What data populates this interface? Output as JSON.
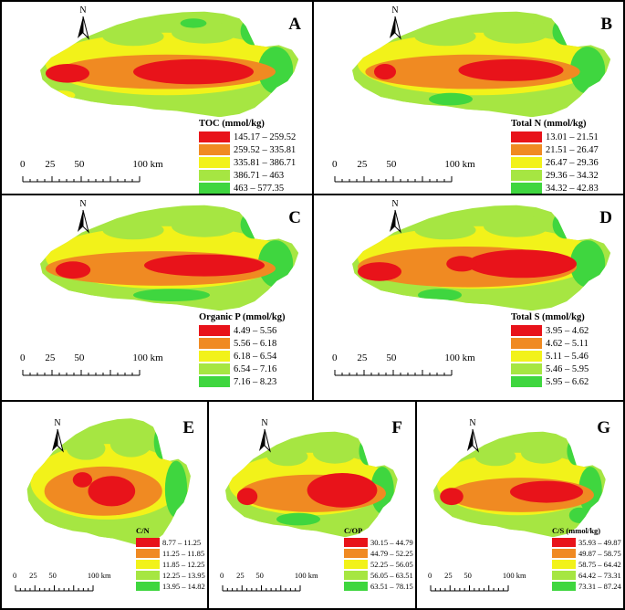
{
  "colors": {
    "red": "#e8131a",
    "orange": "#f08a22",
    "yellow": "#f2f21a",
    "lightgreen": "#a6e642",
    "green": "#3fd63f"
  },
  "panels": [
    {
      "id": "A",
      "legend_title": "TOC (mmol/kg)",
      "classes": [
        "145.17 – 259.52",
        "259.52 – 335.81",
        "335.81 – 386.71",
        "386.71 – 463",
        "463 – 577.35"
      ]
    },
    {
      "id": "B",
      "legend_title": "Total N (mmol/kg)",
      "classes": [
        "13.01 – 21.51",
        "21.51 – 26.47",
        "26.47 – 29.36",
        "29.36 – 34.32",
        "34.32 – 42.83"
      ]
    },
    {
      "id": "C",
      "legend_title": "Organic P (mmol/kg)",
      "classes": [
        "4.49 – 5.56",
        "5.56 – 6.18",
        "6.18 – 6.54",
        "6.54 – 7.16",
        "7.16 – 8.23"
      ]
    },
    {
      "id": "D",
      "legend_title": "Total S (mmol/kg)",
      "classes": [
        "3.95 – 4.62",
        "4.62 – 5.11",
        "5.11 – 5.46",
        "5.46 – 5.95",
        "5.95 – 6.62"
      ]
    },
    {
      "id": "E",
      "legend_title": "C/N",
      "classes": [
        "8.77 – 11.25",
        "11.25 – 11.85",
        "11.85 – 12.25",
        "12.25 – 13.95",
        "13.95 – 14.82"
      ]
    },
    {
      "id": "F",
      "legend_title": "C/OP",
      "classes": [
        "30.15 – 44.79",
        "44.79 – 52.25",
        "52.25 – 56.05",
        "56.05 – 63.51",
        "63.51 – 78.15"
      ]
    },
    {
      "id": "G",
      "legend_title": "C/S (mmol/kg)",
      "classes": [
        "35.93 – 49.87",
        "49.87 – 58.75",
        "58.75 – 64.42",
        "64.42 – 73.31",
        "73.31 – 87.24"
      ]
    }
  ],
  "north_label": "N",
  "scale_labels": [
    "0",
    "25",
    "50",
    "100 km"
  ]
}
